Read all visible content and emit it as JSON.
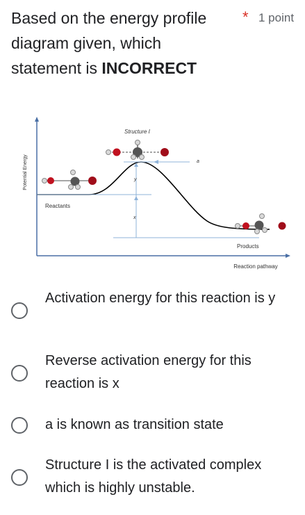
{
  "question": {
    "title_part1": "Based on the energy profile diagram given, which statement is ",
    "title_bold": "INCORRECT",
    "required_marker": "*",
    "points": "1 point"
  },
  "diagram": {
    "y_axis_label": "Potential Energy",
    "x_axis_label": "Reaction pathway",
    "structure_label": "Structure I",
    "reactants_label": "Reactants",
    "products_label": "Products",
    "label_a": "a",
    "label_x": "x",
    "label_y": "y"
  },
  "options": [
    {
      "label": "Activation energy for this reaction is y",
      "selected": false
    },
    {
      "label": "Reverse activation energy for this reaction is x",
      "selected": false
    },
    {
      "label": "a is known as transition state",
      "selected": false
    },
    {
      "label": "Structure I is the activated complex which is highly unstable.",
      "selected": false
    }
  ]
}
